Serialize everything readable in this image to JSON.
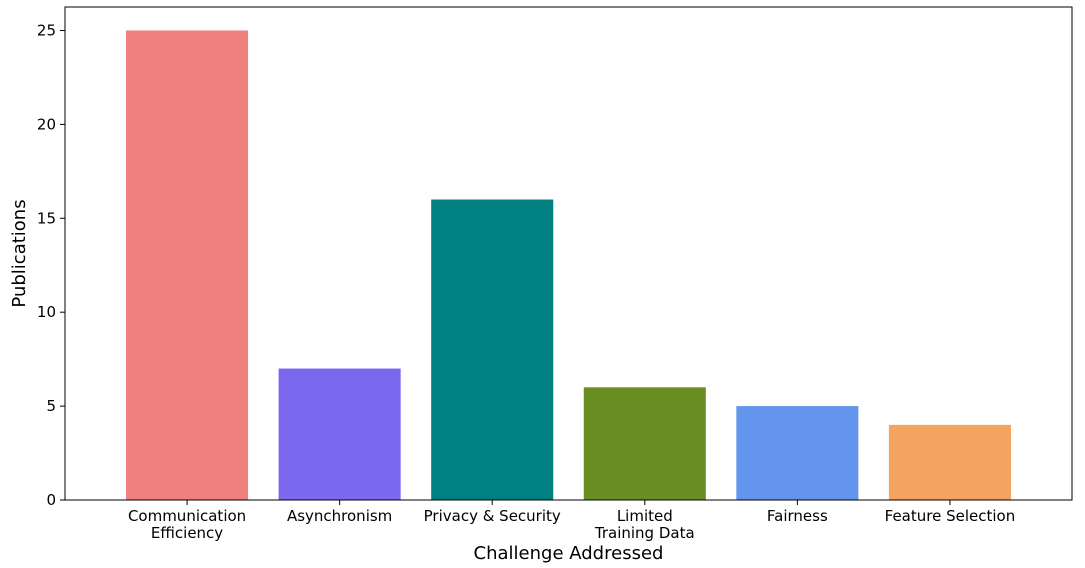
{
  "chart_data": {
    "type": "bar",
    "categories": [
      [
        "Communication",
        "Efficiency"
      ],
      [
        "Asynchronism"
      ],
      [
        "Privacy & Security"
      ],
      [
        "Limited",
        "Training Data"
      ],
      [
        "Fairness"
      ],
      [
        "Feature Selection"
      ]
    ],
    "values": [
      25,
      7,
      16,
      6,
      5,
      4
    ],
    "colors": [
      "#f08080",
      "#7b68ee",
      "#008080",
      "#6b8e23",
      "#6495ed",
      "#f4a460"
    ],
    "xlabel": "Challenge Addressed",
    "ylabel": "Publications",
    "ylim": [
      0,
      26.25
    ],
    "yticks": [
      0,
      5,
      10,
      15,
      20,
      25
    ],
    "grid": false
  }
}
